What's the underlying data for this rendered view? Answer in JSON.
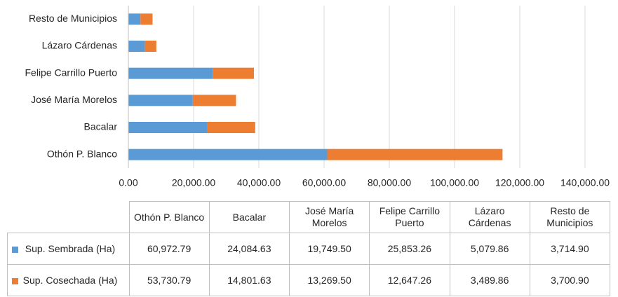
{
  "chart_data": {
    "type": "stacked_bar_horizontal",
    "categories": [
      "Othón P. Blanco",
      "Bacalar",
      "José María Morelos",
      "Felipe Carrillo Puerto",
      "Lázaro Cárdenas",
      "Resto de Municipios"
    ],
    "series": [
      {
        "name": "Sup. Sembrada (Ha)",
        "color": "#5b9bd5",
        "values": [
          60972.79,
          24084.63,
          19749.5,
          25853.26,
          5079.86,
          3714.9
        ],
        "value_labels": [
          "60,972.79",
          "24,084.63",
          "19,749.50",
          "25,853.26",
          "5,079.86",
          "3,714.90"
        ]
      },
      {
        "name": "Sup. Cosechada (Ha)",
        "color": "#ed7d31",
        "values": [
          53730.79,
          14801.63,
          13269.5,
          12647.26,
          3489.86,
          3700.9
        ],
        "value_labels": [
          "53,730.79",
          "14,801.63",
          "13,269.50",
          "12,647.26",
          "3,489.86",
          "3,700.90"
        ]
      }
    ],
    "xlim": [
      0,
      140000
    ],
    "xticks": [
      {
        "value": 0,
        "label": "0.00"
      },
      {
        "value": 20000,
        "label": "20,000.00"
      },
      {
        "value": 40000,
        "label": "40,000.00"
      },
      {
        "value": 60000,
        "label": "60,000.00"
      },
      {
        "value": 80000,
        "label": "80,000.00"
      },
      {
        "value": 100000,
        "label": "100,000.00"
      },
      {
        "value": 120000,
        "label": "120,000.00"
      },
      {
        "value": 140000,
        "label": "140,000.00"
      }
    ],
    "grid": true
  }
}
